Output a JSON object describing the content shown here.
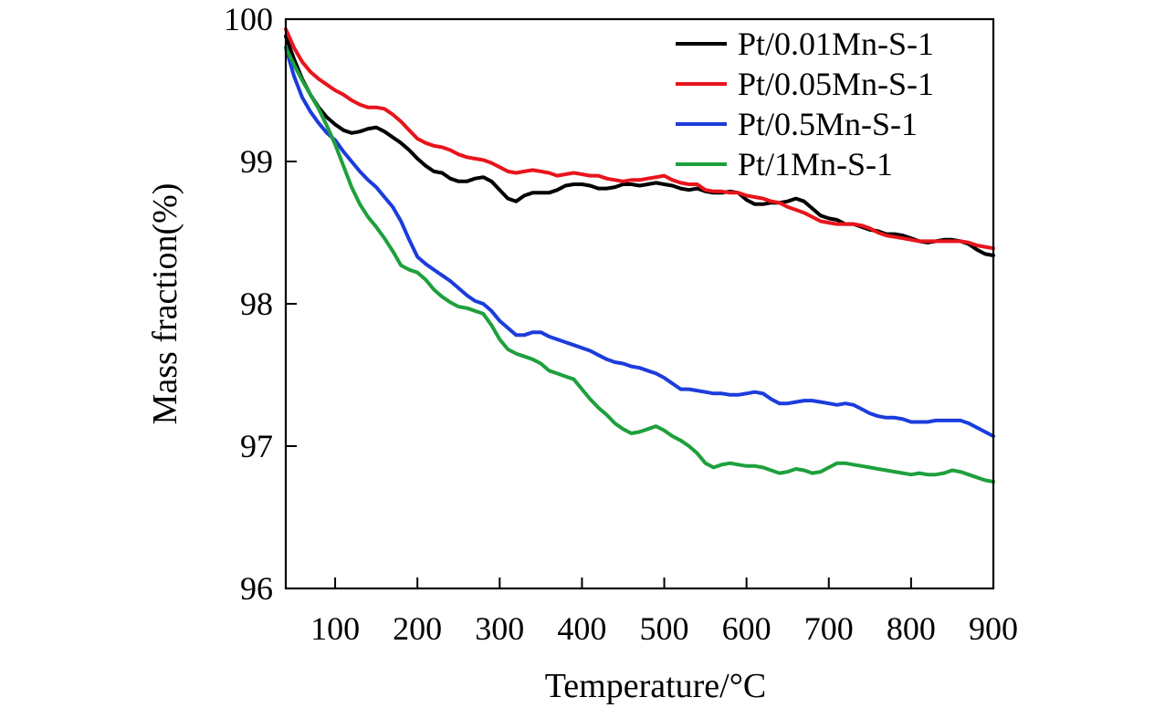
{
  "chart_data": {
    "type": "line",
    "title": "",
    "xlabel": "Temperature/°C",
    "ylabel": "Mass fraction(%)",
    "xlim": [
      40,
      900
    ],
    "ylim": [
      96,
      100
    ],
    "xticks": [
      100,
      200,
      300,
      400,
      500,
      600,
      700,
      800,
      900
    ],
    "yticks": [
      96,
      97,
      98,
      99,
      100
    ],
    "xtick_labels": [
      "100",
      "200",
      "300",
      "400",
      "500",
      "600",
      "700",
      "800",
      "900"
    ],
    "ytick_labels": [
      "96",
      "97",
      "98",
      "99",
      "100"
    ],
    "grid": false,
    "legend_position": "top-right",
    "series": [
      {
        "name": "Pt/0.01Mn-S-1",
        "color": "#000000",
        "x": [
          40,
          50,
          60,
          70,
          80,
          90,
          100,
          110,
          120,
          130,
          140,
          150,
          160,
          170,
          180,
          190,
          200,
          210,
          220,
          230,
          240,
          250,
          260,
          270,
          280,
          290,
          300,
          310,
          320,
          330,
          340,
          350,
          360,
          370,
          380,
          390,
          400,
          410,
          420,
          430,
          440,
          450,
          460,
          470,
          480,
          490,
          500,
          510,
          520,
          530,
          540,
          550,
          560,
          570,
          580,
          590,
          600,
          610,
          620,
          630,
          640,
          650,
          660,
          670,
          680,
          690,
          700,
          710,
          720,
          730,
          740,
          750,
          760,
          770,
          780,
          790,
          800,
          810,
          820,
          830,
          840,
          850,
          860,
          870,
          880,
          890,
          900
        ],
        "values": [
          99.88,
          99.72,
          99.58,
          99.47,
          99.38,
          99.31,
          99.26,
          99.22,
          99.2,
          99.21,
          99.23,
          99.24,
          99.21,
          99.17,
          99.13,
          99.08,
          99.02,
          98.97,
          98.93,
          98.92,
          98.88,
          98.86,
          98.86,
          98.88,
          98.89,
          98.86,
          98.8,
          98.74,
          98.72,
          98.76,
          98.78,
          98.78,
          98.78,
          98.8,
          98.83,
          98.84,
          98.84,
          98.83,
          98.81,
          98.81,
          98.82,
          98.84,
          98.84,
          98.83,
          98.84,
          98.85,
          98.84,
          98.83,
          98.81,
          98.8,
          98.81,
          98.79,
          98.78,
          98.78,
          98.79,
          98.78,
          98.73,
          98.7,
          98.7,
          98.71,
          98.71,
          98.72,
          98.74,
          98.72,
          98.67,
          98.62,
          98.6,
          98.59,
          98.56,
          98.56,
          98.54,
          98.52,
          98.51,
          98.49,
          98.49,
          98.48,
          98.46,
          98.44,
          98.43,
          98.44,
          98.45,
          98.45,
          98.44,
          98.42,
          98.38,
          98.35,
          98.34
        ]
      },
      {
        "name": "Pt/0.05Mn-S-1",
        "color": "#e8141c",
        "x": [
          40,
          50,
          60,
          70,
          80,
          90,
          100,
          110,
          120,
          130,
          140,
          150,
          160,
          170,
          180,
          190,
          200,
          210,
          220,
          230,
          240,
          250,
          260,
          270,
          280,
          290,
          300,
          310,
          320,
          330,
          340,
          350,
          360,
          370,
          380,
          390,
          400,
          410,
          420,
          430,
          440,
          450,
          460,
          470,
          480,
          490,
          500,
          510,
          520,
          530,
          540,
          550,
          560,
          570,
          580,
          590,
          600,
          610,
          620,
          630,
          640,
          650,
          660,
          670,
          680,
          690,
          700,
          710,
          720,
          730,
          740,
          750,
          760,
          770,
          780,
          790,
          800,
          810,
          820,
          830,
          840,
          850,
          860,
          870,
          880,
          890,
          900
        ],
        "values": [
          99.93,
          99.8,
          99.7,
          99.63,
          99.58,
          99.54,
          99.5,
          99.47,
          99.43,
          99.4,
          99.38,
          99.38,
          99.37,
          99.33,
          99.28,
          99.22,
          99.16,
          99.13,
          99.11,
          99.1,
          99.08,
          99.05,
          99.03,
          99.02,
          99.01,
          98.99,
          98.96,
          98.93,
          98.92,
          98.93,
          98.94,
          98.93,
          98.92,
          98.9,
          98.91,
          98.92,
          98.91,
          98.9,
          98.9,
          98.88,
          98.87,
          98.86,
          98.87,
          98.87,
          98.88,
          98.89,
          98.9,
          98.87,
          98.85,
          98.84,
          98.84,
          98.8,
          98.79,
          98.79,
          98.78,
          98.78,
          98.76,
          98.75,
          98.74,
          98.72,
          98.71,
          98.68,
          98.66,
          98.64,
          98.61,
          98.58,
          98.57,
          98.56,
          98.56,
          98.56,
          98.55,
          98.53,
          98.5,
          98.48,
          98.47,
          98.46,
          98.45,
          98.44,
          98.44,
          98.44,
          98.44,
          98.44,
          98.44,
          98.43,
          98.41,
          98.4,
          98.39
        ]
      },
      {
        "name": "Pt/0.5Mn-S-1",
        "color": "#1c3cdc",
        "x": [
          40,
          50,
          60,
          70,
          80,
          90,
          100,
          110,
          120,
          130,
          140,
          150,
          160,
          170,
          180,
          190,
          200,
          210,
          220,
          230,
          240,
          250,
          260,
          270,
          280,
          290,
          300,
          310,
          320,
          330,
          340,
          350,
          360,
          370,
          380,
          390,
          400,
          410,
          420,
          430,
          440,
          450,
          460,
          470,
          480,
          490,
          500,
          510,
          520,
          530,
          540,
          550,
          560,
          570,
          580,
          590,
          600,
          610,
          620,
          630,
          640,
          650,
          660,
          670,
          680,
          690,
          700,
          710,
          720,
          730,
          740,
          750,
          760,
          770,
          780,
          790,
          800,
          810,
          820,
          830,
          840,
          850,
          860,
          870,
          880,
          890,
          900
        ],
        "values": [
          99.8,
          99.6,
          99.45,
          99.35,
          99.27,
          99.2,
          99.15,
          99.07,
          99.0,
          98.93,
          98.87,
          98.82,
          98.75,
          98.68,
          98.58,
          98.45,
          98.33,
          98.28,
          98.24,
          98.2,
          98.16,
          98.11,
          98.06,
          98.02,
          98.0,
          97.95,
          97.88,
          97.83,
          97.78,
          97.78,
          97.8,
          97.8,
          97.77,
          97.75,
          97.73,
          97.71,
          97.69,
          97.67,
          97.64,
          97.61,
          97.59,
          97.58,
          97.56,
          97.55,
          97.53,
          97.51,
          97.48,
          97.44,
          97.4,
          97.4,
          97.39,
          97.38,
          97.37,
          97.37,
          97.36,
          97.36,
          97.37,
          97.38,
          97.37,
          97.33,
          97.3,
          97.3,
          97.31,
          97.32,
          97.32,
          97.31,
          97.3,
          97.29,
          97.3,
          97.29,
          97.26,
          97.23,
          97.21,
          97.2,
          97.2,
          97.19,
          97.17,
          97.17,
          97.17,
          97.18,
          97.18,
          97.18,
          97.18,
          97.16,
          97.13,
          97.1,
          97.07
        ]
      },
      {
        "name": "Pt/1Mn-S-1",
        "color": "#1ea03c",
        "x": [
          40,
          50,
          60,
          70,
          80,
          90,
          100,
          110,
          120,
          130,
          140,
          150,
          160,
          170,
          180,
          190,
          200,
          210,
          220,
          230,
          240,
          250,
          260,
          270,
          280,
          290,
          300,
          310,
          320,
          330,
          340,
          350,
          360,
          370,
          380,
          390,
          400,
          410,
          420,
          430,
          440,
          450,
          460,
          470,
          480,
          490,
          500,
          510,
          520,
          530,
          540,
          550,
          560,
          570,
          580,
          590,
          600,
          610,
          620,
          630,
          640,
          650,
          660,
          670,
          680,
          690,
          700,
          710,
          720,
          730,
          740,
          750,
          760,
          770,
          780,
          790,
          800,
          810,
          820,
          830,
          840,
          850,
          860,
          870,
          880,
          890,
          900
        ],
        "values": [
          99.8,
          99.68,
          99.57,
          99.47,
          99.37,
          99.25,
          99.12,
          98.97,
          98.82,
          98.7,
          98.61,
          98.54,
          98.46,
          98.37,
          98.27,
          98.24,
          98.22,
          98.17,
          98.1,
          98.05,
          98.01,
          97.98,
          97.97,
          97.95,
          97.93,
          97.85,
          97.75,
          97.68,
          97.65,
          97.63,
          97.61,
          97.58,
          97.53,
          97.51,
          97.49,
          97.47,
          97.4,
          97.33,
          97.27,
          97.22,
          97.16,
          97.12,
          97.09,
          97.1,
          97.12,
          97.14,
          97.11,
          97.07,
          97.04,
          97.0,
          96.95,
          96.88,
          96.85,
          96.87,
          96.88,
          96.87,
          96.86,
          96.86,
          96.85,
          96.83,
          96.81,
          96.82,
          96.84,
          96.83,
          96.81,
          96.82,
          96.85,
          96.88,
          96.88,
          96.87,
          96.86,
          96.85,
          96.84,
          96.83,
          96.82,
          96.81,
          96.8,
          96.81,
          96.8,
          96.8,
          96.81,
          96.83,
          96.82,
          96.8,
          96.78,
          96.76,
          96.75
        ]
      }
    ]
  }
}
